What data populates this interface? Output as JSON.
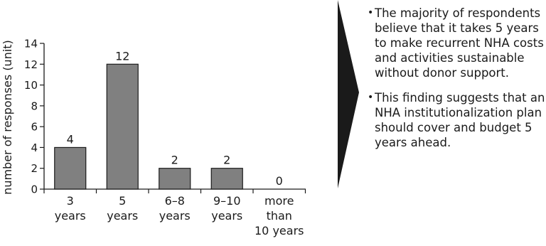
{
  "chart_data": {
    "type": "bar",
    "categories": [
      [
        "3",
        "years"
      ],
      [
        "5",
        "years"
      ],
      [
        "6–8",
        "years"
      ],
      [
        "9–10",
        "years"
      ],
      [
        "more",
        "than",
        "10 years"
      ]
    ],
    "values": [
      4,
      12,
      2,
      2,
      0
    ],
    "data_labels": [
      "4",
      "12",
      "2",
      "2",
      "0"
    ],
    "ylabel": "number of responses (unit)",
    "xlabel": "",
    "title": "",
    "ylim": [
      0,
      14
    ],
    "yticks": [
      "0",
      "2",
      "4",
      "6",
      "8",
      "10",
      "12",
      "14"
    ],
    "bar_color": "#808080",
    "bar_stroke": "#1a1a1a",
    "grid": false
  },
  "notes": {
    "items": [
      "The majority of respondents believe that it takes 5 years to make recurrent NHA costs and activities sustainable without donor support.",
      "This finding suggests that an NHA institutionalization plan should cover and budget 5 years ahead."
    ],
    "bullet": "•",
    "arrow_color": "#1a1a1a"
  }
}
